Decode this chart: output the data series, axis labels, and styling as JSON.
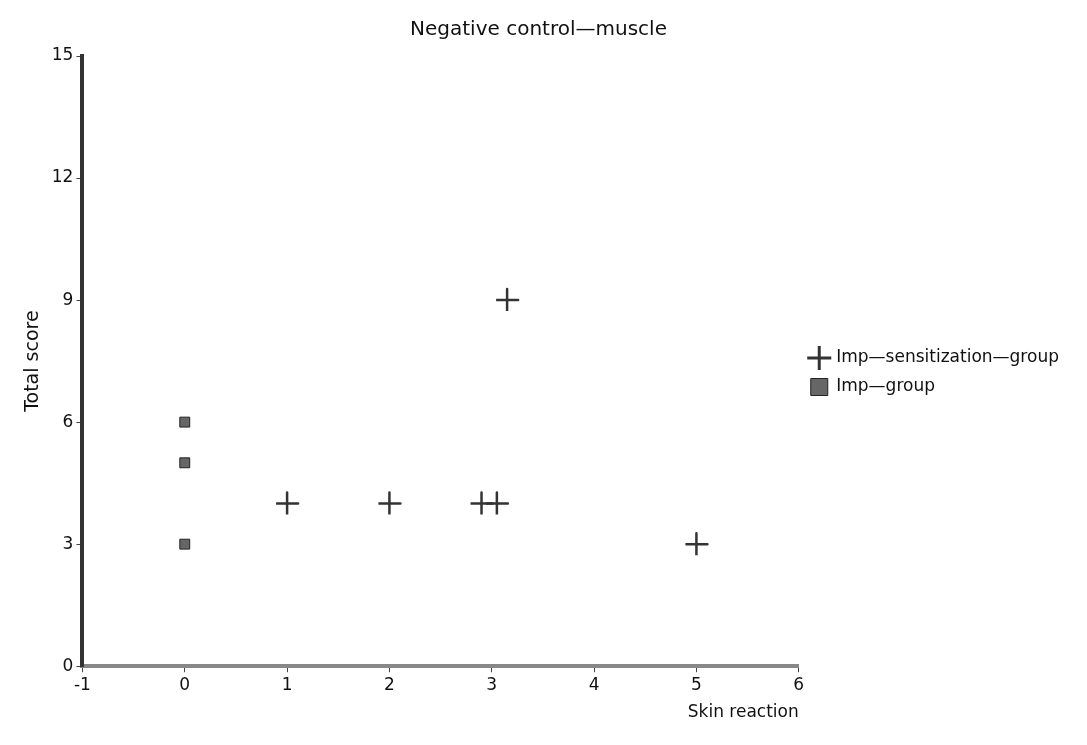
{
  "chart_data": {
    "type": "scatter",
    "title": "Negative control—muscle",
    "xlabel": "Skin reaction",
    "ylabel": "Total score",
    "xlim": [
      -1,
      6
    ],
    "xticks": [
      -1,
      0,
      1,
      2,
      3,
      4,
      5,
      6
    ],
    "ylim": [
      0,
      15
    ],
    "yticks": [
      0,
      3,
      6,
      9,
      12,
      15
    ],
    "grid": false,
    "legend": "right",
    "series": [
      {
        "name": "Imp—sensitization—group",
        "color": "#333333",
        "marker": "cross",
        "x": [
          1,
          2,
          2.9,
          3.05,
          3.15,
          5
        ],
        "values": [
          4,
          4,
          4,
          4,
          9,
          3
        ]
      },
      {
        "name": "Imp—group",
        "color": "#666666",
        "marker": "square",
        "x": [
          0,
          0,
          0
        ],
        "values": [
          6,
          5,
          3
        ]
      }
    ]
  }
}
